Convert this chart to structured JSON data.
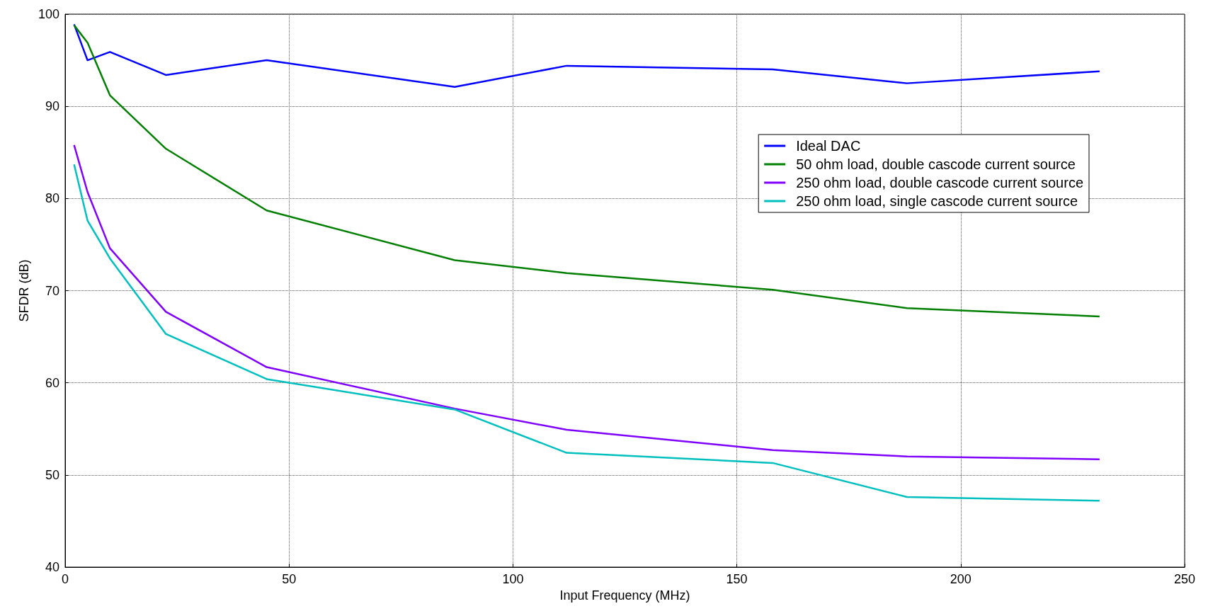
{
  "chart_data": {
    "type": "line",
    "xlabel": "Input Frequency (MHz)",
    "ylabel": "SFDR (dB)",
    "x": [
      2,
      5,
      10,
      22.5,
      45,
      87,
      112,
      158,
      188,
      231
    ],
    "series": [
      {
        "name": "Ideal DAC",
        "color": "#0000ff",
        "values": [
          98.9,
          95,
          95.9,
          93.4,
          95,
          92.1,
          94.4,
          94,
          92.5,
          93.8
        ]
      },
      {
        "name": "50 ohm load, double cascode current source",
        "color": "#007f00",
        "values": [
          98.8,
          96.9,
          91.2,
          85.4,
          78.7,
          73.3,
          71.9,
          70.1,
          68.1,
          67.2
        ]
      },
      {
        "name": "250 ohm load, double cascode current source",
        "color": "#7f00ff",
        "values": [
          85.8,
          80.7,
          74.6,
          67.7,
          61.7,
          57.2,
          54.9,
          52.7,
          52.0,
          51.7
        ]
      },
      {
        "name": "250 ohm load, single cascode current source",
        "color": "#00bfbf",
        "values": [
          83.7,
          77.6,
          73.5,
          65.3,
          60.4,
          57.1,
          52.4,
          51.3,
          47.6,
          47.2
        ]
      }
    ],
    "xlim": [
      0,
      250
    ],
    "xticks": [
      0,
      50,
      100,
      150,
      200,
      250
    ],
    "ylim": [
      40,
      100
    ],
    "yticks": [
      40,
      50,
      60,
      70,
      80,
      90,
      100
    ],
    "grid": true,
    "legend": "top right",
    "marker": "none",
    "line_style": "solid"
  }
}
